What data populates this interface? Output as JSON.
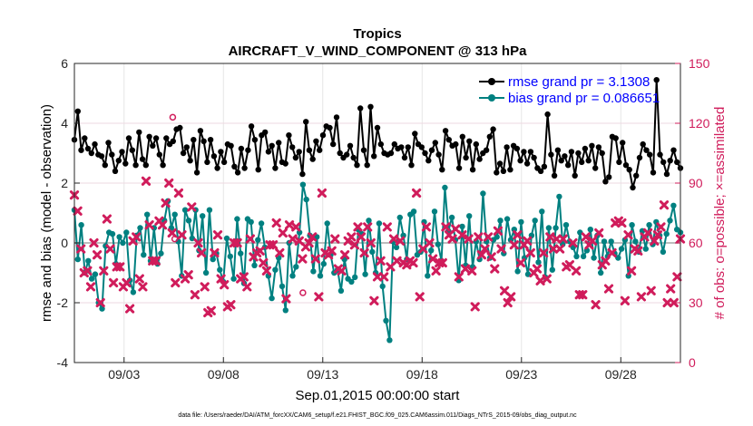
{
  "chart_data": {
    "type": "line",
    "title": "Tropics",
    "subtitle": "AIRCRAFT_V_WIND_COMPONENT @ 313 hPa",
    "xlabel": "Sep.01,2015 00:00:00 start",
    "ylabel": "rmse and bias (model - observation)",
    "y2label": "# of obs: o=possible; ×=assimilated",
    "footnote": "data file: /Users/raeder/DAI/ATM_forcXX/CAM6_setup/f.e21.FHIST_BGC.f09_025.CAM6assim.011/Diags_NTrS_2015-09/obs_diag_output.nc",
    "xlim": [
      0,
      30.5
    ],
    "ylim": [
      -4,
      6
    ],
    "y2lim": [
      0,
      150
    ],
    "xticks": [
      2.5,
      7.5,
      12.5,
      17.5,
      22.5,
      27.5
    ],
    "xtick_labels": [
      "09/03",
      "09/08",
      "09/13",
      "09/18",
      "09/23",
      "09/28"
    ],
    "yticks": [
      -4,
      -2,
      0,
      2,
      4,
      6
    ],
    "y2ticks": [
      0,
      30,
      60,
      90,
      120,
      150
    ],
    "series": [
      {
        "name": "rmse grand pr = 3.1308",
        "color": "#000000",
        "values": [
          3.45,
          4.4,
          3.1,
          3.5,
          3.15,
          3.0,
          3.3,
          2.95,
          2.9,
          2.6,
          3.35,
          2.95,
          2.4,
          2.75,
          3.05,
          2.65,
          3.5,
          3.1,
          2.6,
          3.7,
          2.8,
          2.6,
          3.55,
          3.25,
          3.5,
          2.95,
          2.6,
          3.5,
          3.3,
          3.4,
          3.8,
          3.85,
          3.0,
          3.2,
          2.75,
          3.45,
          2.35,
          3.75,
          3.4,
          2.7,
          3.45,
          2.9,
          2.5,
          3.05,
          2.7,
          3.3,
          3.25,
          2.55,
          2.35,
          3.15,
          2.5,
          3.1,
          3.9,
          3.45,
          2.45,
          3.6,
          3.7,
          3.05,
          3.25,
          2.5,
          3.35,
          2.7,
          2.65,
          3.6,
          3.2,
          2.85,
          3.05,
          2.3,
          4.05,
          3.1,
          2.8,
          3.4,
          3.1,
          3.6,
          3.9,
          3.85,
          3.3,
          4.2,
          3.0,
          2.85,
          2.95,
          3.25,
          2.85,
          2.6,
          4.5,
          3.1,
          2.6,
          4.55,
          2.9,
          3.85,
          3.3,
          3.0,
          2.95,
          3.0,
          3.3,
          3.15,
          3.2,
          2.85,
          3.2,
          2.6,
          3.65,
          3.3,
          3.2,
          3.0,
          2.75,
          3.1,
          3.35,
          2.95,
          2.45,
          3.75,
          3.45,
          3.25,
          3.3,
          2.5,
          3.55,
          2.85,
          3.4,
          2.45,
          3.3,
          2.8,
          3.0,
          3.1,
          3.55,
          3.8,
          2.35,
          2.65,
          2.4,
          3.2,
          2.45,
          3.25,
          3.15,
          2.75,
          3.05,
          2.65,
          3.05,
          2.85,
          2.5,
          2.4,
          2.55,
          4.3,
          2.95,
          2.25,
          3.1,
          2.75,
          2.9,
          2.6,
          3.05,
          2.25,
          3.0,
          2.7,
          3.15,
          2.75,
          3.25,
          2.5,
          3.2,
          3.0,
          2.05,
          2.2,
          3.55,
          3.5,
          2.7,
          3.35,
          2.6,
          2.45,
          1.85,
          2.25,
          2.85,
          3.3,
          3.1,
          2.95,
          2.35,
          5.45,
          2.95,
          2.7,
          2.3,
          2.75,
          3.1,
          2.7,
          2.5
        ],
        "label_pos": "top-right"
      },
      {
        "name": "bias grand pr = 0.086651",
        "color": "#008080",
        "values": [
          1.1,
          -0.55,
          0.6,
          -1.0,
          -0.6,
          -1.2,
          -1.05,
          -2.0,
          -2.2,
          -0.1,
          0.35,
          0.3,
          -0.7,
          0.2,
          0.0,
          0.35,
          -1.25,
          -1.65,
          0.25,
          0.5,
          -0.4,
          0.95,
          -0.6,
          0.5,
          -0.7,
          -0.35,
          0.75,
          1.4,
          0.5,
          0.95,
          0.05,
          -1.1,
          1.1,
          0.75,
          0.15,
          1.1,
          -0.25,
          0.9,
          -1.0,
          1.1,
          -0.55,
          -0.35,
          -0.9,
          -1.3,
          0.15,
          -0.45,
          -1.2,
          0.8,
          -0.35,
          -1.35,
          0.8,
          0.7,
          -0.75,
          0.1,
          0.65,
          -0.15,
          -1.1,
          -1.85,
          -0.9,
          -0.5,
          -1.45,
          -2.25,
          0.0,
          -1.1,
          -0.8,
          0.35,
          1.95,
          1.45,
          0.25,
          -0.95,
          0.2,
          -1.1,
          -0.7,
          0.65,
          -0.4,
          -1.0,
          -0.9,
          -1.6,
          -0.55,
          -1.2,
          -1.3,
          -1.15,
          0.45,
          0.3,
          -1.05,
          0.75,
          -0.3,
          -1.0,
          0.65,
          -1.45,
          -2.6,
          -3.25,
          0.05,
          -0.15,
          0.85,
          0.25,
          -0.55,
          0.95,
          1.05,
          -0.4,
          -0.3,
          0.7,
          -1.1,
          -0.25,
          1.05,
          -0.05,
          -0.6,
          1.85,
          0.4,
          0.85,
          0.1,
          -1.25,
          0.55,
          -0.75,
          0.9,
          -0.8,
          0.05,
          -0.55,
          1.65,
          0.05,
          -0.5,
          0.1,
          0.2,
          0.75,
          -0.35,
          0.8,
          0.1,
          0.45,
          -0.95,
          0.7,
          -0.5,
          -1.05,
          0.25,
          0.75,
          -0.65,
          1.05,
          -1.15,
          0.5,
          -0.9,
          0.5,
          1.55,
          -0.05,
          0.6,
          0.05,
          -0.15,
          -0.45,
          0.35,
          -0.45,
          -0.25,
          0.45,
          -0.5,
          0.25,
          -1.0,
          0.05,
          -0.45,
          0.05,
          -0.35,
          -0.5,
          -0.2,
          0.1,
          -1.1,
          0.6,
          0.05,
          -0.3,
          0.4,
          -0.2,
          0.6,
          -0.05,
          0.7,
          0.25,
          -0.3,
          0.3,
          0.75,
          1.25,
          0.45,
          0.35
        ]
      }
    ],
    "points": {
      "name": "# of obs assimilated",
      "color": "#d01c5b",
      "axis": "right",
      "values": [
        84,
        76,
        57,
        45,
        46,
        38,
        60,
        54,
        30,
        46,
        72,
        57,
        40,
        48,
        48,
        38,
        40,
        27,
        61,
        63,
        42,
        38,
        91,
        69,
        51,
        51,
        71,
        69,
        80,
        90,
        65,
        40,
        85,
        64,
        42,
        44,
        78,
        34,
        60,
        55,
        38,
        25,
        26,
        55,
        64,
        42,
        39,
        28,
        29,
        60,
        60,
        42,
        43,
        38,
        62,
        53,
        55,
        56,
        50,
        46,
        59,
        59,
        70,
        55,
        65,
        32,
        69,
        62,
        68,
        61,
        52,
        58,
        60,
        63,
        52,
        33,
        85,
        55,
        54,
        56,
        62,
        47,
        46,
        54,
        61,
        63,
        59,
        68,
        63,
        55,
        68,
        60,
        31,
        43,
        51,
        43,
        68,
        48,
        62,
        51,
        61,
        50,
        49,
        51,
        50,
        85,
        33,
        57,
        68,
        60,
        52,
        46,
        50,
        50,
        68,
        64,
        62,
        67,
        43,
        64,
        47,
        62,
        46,
        28,
        63,
        54,
        57,
        63,
        53,
        47,
        66,
        57,
        36,
        30,
        33,
        59,
        64,
        50,
        59,
        61,
        55,
        45,
        47,
        41,
        55,
        42,
        63,
        57,
        62,
        57,
        62,
        48,
        49,
        60,
        46,
        34,
        34,
        63,
        59,
        61,
        29,
        65,
        49,
        51,
        37,
        55,
        70,
        71,
        70,
        31,
        64,
        46,
        57,
        56,
        33,
        63,
        65,
        36,
        61,
        64,
        68,
        79,
        30,
        37,
        30,
        43,
        62
      ]
    },
    "possible_markers": {
      "name": "# of obs possible",
      "color": "#d01c5b",
      "values": [
        {
          "x": 4.95,
          "y2": 123
        },
        {
          "x": 5.05,
          "y2": 62
        },
        {
          "x": 11.5,
          "y2": 35
        }
      ]
    }
  }
}
